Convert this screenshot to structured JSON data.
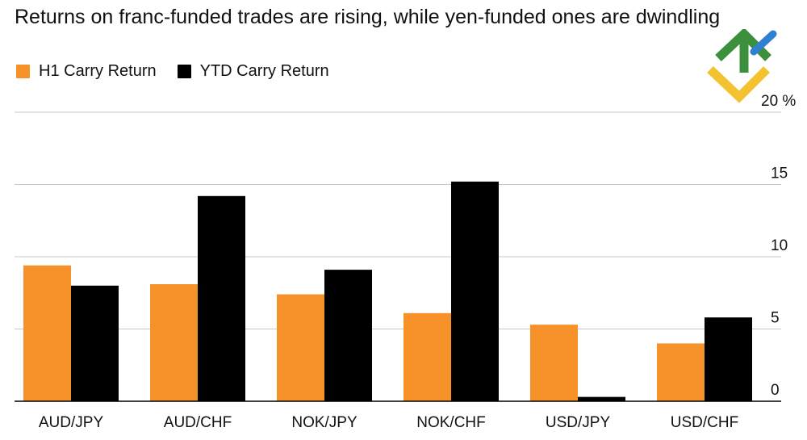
{
  "title": "Returns on franc-funded trades are rising, while yen-funded ones are dwindling",
  "colors": {
    "h1": "#f7922b",
    "ytd": "#000000",
    "grid": "#c8c8c8",
    "axis": "#000000"
  },
  "legend": [
    {
      "label": "H1 Carry Return",
      "color": "#f7922b"
    },
    {
      "label": "YTD Carry Return",
      "color": "#000000"
    }
  ],
  "chart_data": {
    "type": "bar",
    "categories": [
      "AUD/JPY",
      "AUD/CHF",
      "NOK/JPY",
      "NOK/CHF",
      "USD/JPY",
      "USD/CHF"
    ],
    "series": [
      {
        "name": "H1 Carry Return",
        "values": [
          9.4,
          8.1,
          7.4,
          6.1,
          5.3,
          4.0
        ]
      },
      {
        "name": "YTD Carry Return",
        "values": [
          8.0,
          14.2,
          9.1,
          15.2,
          0.3,
          5.8
        ]
      }
    ],
    "yticks": [
      "0",
      "5",
      "10",
      "15",
      "20 %"
    ],
    "ylim": [
      0,
      20
    ],
    "yaxis_position": "right",
    "grid": true,
    "legend_position": "top-left"
  }
}
